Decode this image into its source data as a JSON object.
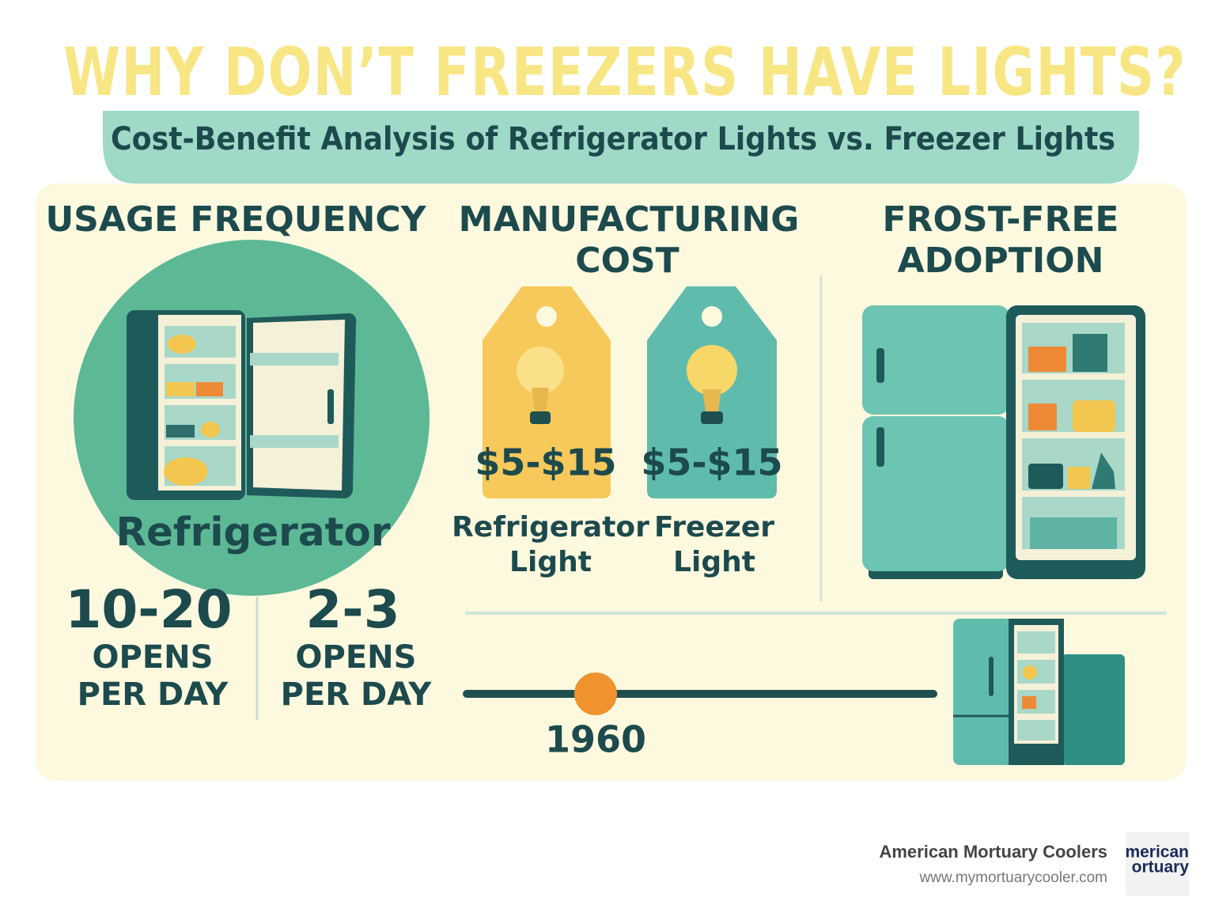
{
  "header": {
    "title": "WHY DON’T FREEZERS HAVE LIGHTS?",
    "subtitle": "Cost-Benefit Analysis of Refrigerator Lights vs. Freezer Lights"
  },
  "sections": [
    {
      "title_lines": [
        "USAGE FREQUENCY"
      ],
      "appliance_label": "Refrigerator",
      "stats": [
        {
          "value": "10-20",
          "unit_lines": [
            "OPENS",
            "PER DAY"
          ]
        },
        {
          "value": "2-3",
          "unit_lines": [
            "OPENS",
            "PER DAY"
          ]
        }
      ]
    },
    {
      "title_lines": [
        "MANUFACTURING",
        "COST"
      ],
      "tags": [
        {
          "price": "$5-$15",
          "label_lines": [
            "Refrigerator",
            "Light"
          ]
        },
        {
          "price": "$5-$15",
          "label_lines": [
            "Freezer",
            "Light"
          ]
        }
      ]
    },
    {
      "title_lines": [
        "FROST-FREE",
        "ADOPTION"
      ]
    }
  ],
  "timeline": {
    "year": "1960"
  },
  "footer": {
    "company": "American Mortuary Coolers",
    "url": "www.mymortuarycooler.com",
    "logo_lines": [
      "merican",
      "ortuary"
    ]
  }
}
